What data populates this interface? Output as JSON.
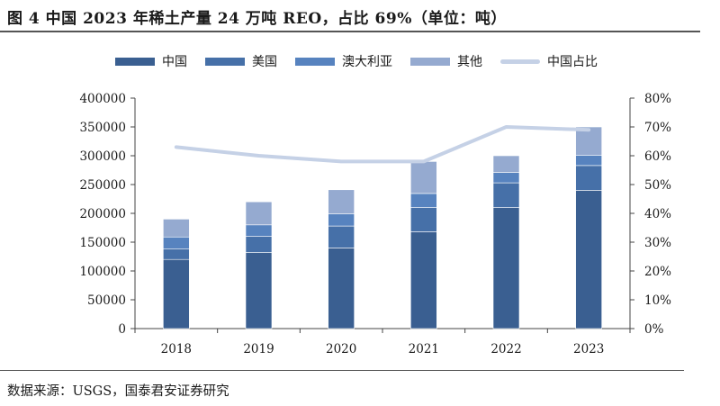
{
  "title": "图 4 中国 2023 年稀土产量 24 万吨 REO，占比 69%（单位：吨）",
  "source": "数据来源：USGS，国泰君安证券研究",
  "chart_data": {
    "type": "bar",
    "stacked": true,
    "categories": [
      "2018",
      "2019",
      "2020",
      "2021",
      "2022",
      "2023"
    ],
    "series": [
      {
        "name": "中国",
        "values": [
          120000,
          132000,
          140000,
          168000,
          210000,
          240000
        ],
        "color": "#3a5f91"
      },
      {
        "name": "美国",
        "values": [
          18000,
          28000,
          38000,
          42000,
          43000,
          43000
        ],
        "color": "#4670a8"
      },
      {
        "name": "澳大利亚",
        "values": [
          21000,
          20000,
          21000,
          24500,
          18000,
          18000
        ],
        "color": "#5783bf"
      },
      {
        "name": "其他",
        "values": [
          31000,
          40000,
          42000,
          55500,
          29000,
          49000
        ],
        "color": "#95aad0"
      }
    ],
    "line_series": {
      "name": "中国占比",
      "axis": "right",
      "values": [
        0.63,
        0.6,
        0.58,
        0.58,
        0.7,
        0.69
      ],
      "color": "#c5d1e6"
    },
    "y_left": {
      "min": 0,
      "max": 400000,
      "step": 50000,
      "ticks": [
        "0",
        "50000",
        "100000",
        "150000",
        "200000",
        "250000",
        "300000",
        "350000",
        "400000"
      ]
    },
    "y_right": {
      "min": 0,
      "max": 0.8,
      "step": 0.1,
      "ticks": [
        "0%",
        "10%",
        "20%",
        "30%",
        "40%",
        "50%",
        "60%",
        "70%",
        "80%"
      ]
    },
    "grid": false,
    "legend_position": "top"
  }
}
